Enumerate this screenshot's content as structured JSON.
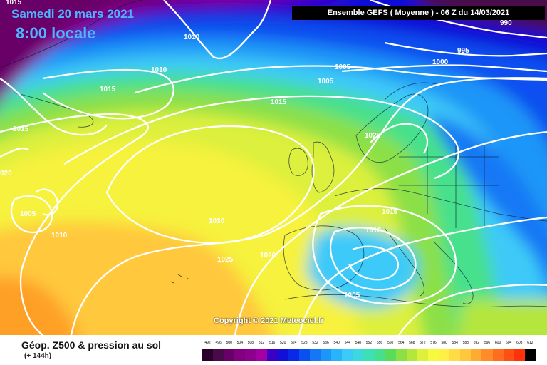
{
  "header": {
    "date": "Samedi 20 mars 2021",
    "time": "8:00 locale",
    "model": "Ensemble GEFS  ( Moyenne )  -  06 Z du 14/03/2021"
  },
  "copyright": "Copyright © 2021 Meteociel.fr",
  "footer": {
    "title": "Géop. Z500 & pression au sol",
    "subtitle": "(+ 144h)"
  },
  "legend": {
    "values": [
      "492",
      "496",
      "500",
      "504",
      "508",
      "512",
      "516",
      "520",
      "524",
      "528",
      "532",
      "536",
      "540",
      "544",
      "548",
      "552",
      "556",
      "560",
      "564",
      "568",
      "572",
      "576",
      "580",
      "584",
      "588",
      "592",
      "596",
      "600",
      "604",
      "608",
      "612"
    ],
    "colors": [
      "#2b002b",
      "#4a0a4a",
      "#680068",
      "#800080",
      "#8c008c",
      "#a200a2",
      "#3a00c8",
      "#1010d8",
      "#0a28e8",
      "#0a50f0",
      "#1478f5",
      "#1e96f8",
      "#28b4fa",
      "#3ccaf8",
      "#3cd8e0",
      "#3ce0b4",
      "#46e08c",
      "#5adc5a",
      "#8ce046",
      "#b4e63c",
      "#dcf03c",
      "#f6fa3c",
      "#fff046",
      "#ffdc46",
      "#ffc83c",
      "#ffaa32",
      "#ff8c28",
      "#ff6e1e",
      "#ff5014",
      "#ff320a",
      "#000000"
    ]
  },
  "isobars": [
    "1015",
    "990",
    "995",
    "1000",
    "1005",
    "1010",
    "1010",
    "1015",
    "1005",
    "1010",
    "1015",
    "1025",
    "1030",
    "1025",
    "1020",
    "1015",
    "1010",
    "1005",
    "1015",
    "020",
    "1005",
    "1010"
  ]
}
